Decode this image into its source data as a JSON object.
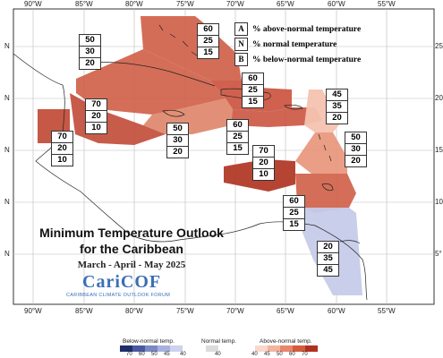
{
  "title": {
    "line1": "Minimum Temperature Outlook",
    "line2": "for the Caribbean",
    "period": "March - April - May 2025"
  },
  "logo": {
    "name": "CariCOF",
    "tagline": "CARIBBEAN CLIMATE OUTLOOK FORUM"
  },
  "legend": {
    "rows": [
      {
        "key": "A",
        "label": "% above-normal temperature"
      },
      {
        "key": "N",
        "label": "% normal temperature"
      },
      {
        "key": "B",
        "label": "% below-normal temperature"
      }
    ]
  },
  "axes": {
    "longitude_top": [
      "90°W",
      "85°W",
      "80°W",
      "75°W",
      "70°W",
      "65°W",
      "60°W",
      "55°W"
    ],
    "longitude_bottom": [
      "90°W",
      "85°W",
      "80°W",
      "75°W",
      "70°W",
      "65°W",
      "60°W",
      "55°W"
    ],
    "latitude_left": [
      "N",
      "N",
      "N",
      "N",
      "N"
    ],
    "latitude_right": [
      "25",
      "20",
      "15",
      "10",
      "5°"
    ]
  },
  "probability_boxes": [
    {
      "region": "central-west",
      "values": [
        "50",
        "30",
        "20"
      ]
    },
    {
      "region": "bahamas",
      "values": [
        "60",
        "25",
        "15"
      ]
    },
    {
      "region": "belize-guatemala",
      "values": [
        "70",
        "20",
        "10"
      ]
    },
    {
      "region": "honduras",
      "values": [
        "70",
        "20",
        "10"
      ]
    },
    {
      "region": "hispaniola",
      "values": [
        "60",
        "25",
        "15"
      ]
    },
    {
      "region": "jamaica",
      "values": [
        "50",
        "30",
        "20"
      ]
    },
    {
      "region": "puerto-rico",
      "values": [
        "60",
        "25",
        "15"
      ]
    },
    {
      "region": "leeward-islands",
      "values": [
        "45",
        "35",
        "20"
      ]
    },
    {
      "region": "windward-islands",
      "values": [
        "50",
        "30",
        "20"
      ]
    },
    {
      "region": "abc-islands",
      "values": [
        "70",
        "20",
        "10"
      ]
    },
    {
      "region": "trinidad",
      "values": [
        "60",
        "25",
        "15"
      ]
    },
    {
      "region": "guianas",
      "values": [
        "20",
        "35",
        "45"
      ]
    }
  ],
  "colorbar": {
    "below_label": "Below-normal temp.",
    "normal_label": "Normal temp.",
    "above_label": "Above-normal temp.",
    "below_ticks": [
      "70",
      "60",
      "50",
      "45",
      "40"
    ],
    "normal_ticks": [
      "40"
    ],
    "above_ticks": [
      "40",
      "45",
      "50",
      "60",
      "70"
    ],
    "colors": {
      "below": [
        "#1f2f6b",
        "#4a5aa0",
        "#7c88c4",
        "#a8b0dc",
        "#cdd2ee"
      ],
      "normal": [
        "#dcdcdc"
      ],
      "above": [
        "#f8d8cc",
        "#f2b49e",
        "#e8876a",
        "#d65a3e",
        "#b03020"
      ]
    }
  }
}
